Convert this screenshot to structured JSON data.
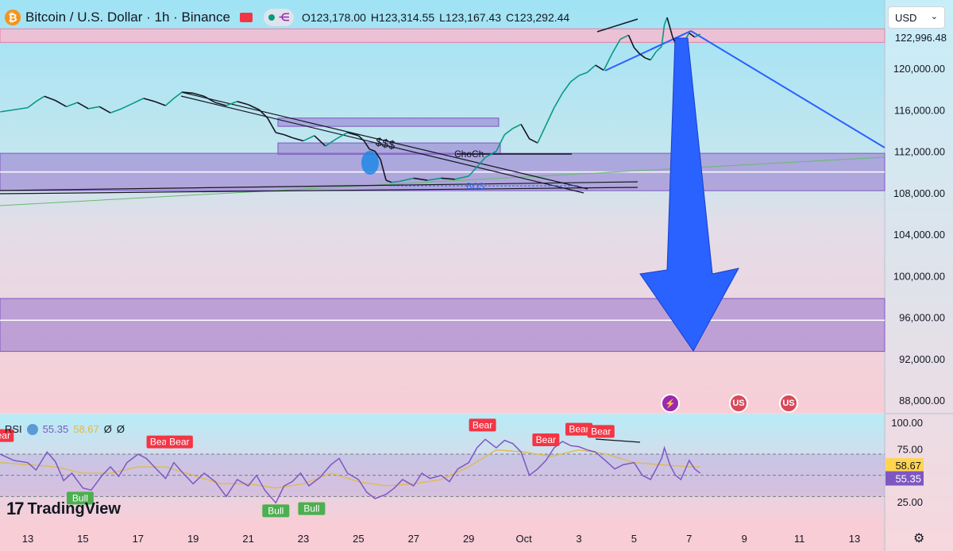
{
  "header": {
    "coin_glyph": "₿",
    "symbol": "Bitcoin / U.S. Dollar · 1h · Binance",
    "open_label": "O",
    "open": "123,178.00",
    "high_label": "H",
    "high": "123,314.55",
    "low_label": "L",
    "low": "123,167.43",
    "close_label": "C",
    "close": "123,292.44",
    "network_icon": "network-icon"
  },
  "currency": {
    "label": "USD",
    "chevron": "⌄"
  },
  "rsi_legend": {
    "name": "RSI",
    "rsi": "55.35",
    "ma": "58.67",
    "ext1": "Ø",
    "ext2": "Ø"
  },
  "branding": {
    "logo_mark": "17",
    "logo_text": "TradingView"
  },
  "settings_icon": "⚙",
  "events": {
    "spark": "⚡",
    "us1": "US",
    "us2": "US"
  },
  "colors": {
    "zone_fill": "#9575cd",
    "zone_pink": "#f8bbd0",
    "arrow": "#2962ff",
    "trendline": "#2962ff",
    "rsi": "#7e57c2",
    "rsi_ma": "#e0b94a",
    "bear": "#f23645",
    "bull": "#4caf50",
    "current_price_bg": "#131722",
    "rsi_badge": "#7e57c2",
    "ma_badge": "#ffd54f"
  },
  "chart_data": [
    {
      "type": "line",
      "title": "Bitcoin / U.S. Dollar · 1h · Binance",
      "ylim": [
        86000,
        125600
      ],
      "y_ticks": [
        "120,000.00",
        "116,000.00",
        "112,000.00",
        "108,000.00",
        "104,000.00",
        "100,000.00",
        "96,000.00",
        "92,000.00",
        "88,000.00"
      ],
      "y_tick_values": [
        120000,
        116000,
        112000,
        108000,
        104000,
        100000,
        96000,
        92000,
        88000
      ],
      "current_price_label": "122,996.48",
      "current_price": 122996.48,
      "x_ticks": [
        "13",
        "15",
        "17",
        "19",
        "21",
        "23",
        "25",
        "27",
        "29",
        "Oct",
        "3",
        "5",
        "7",
        "9",
        "11",
        "13"
      ],
      "x_tick_days": [
        0,
        2,
        4,
        6,
        8,
        10,
        12,
        14,
        16,
        18,
        20,
        22,
        24,
        26,
        28,
        30
      ],
      "xlim": [
        -1,
        31.5
      ],
      "series": [
        {
          "points": [
            [
              -1,
              115800
            ],
            [
              -0.5,
              116000
            ],
            [
              0,
              116200
            ],
            [
              0.3,
              116800
            ],
            [
              0.6,
              117300
            ],
            [
              1,
              116900
            ],
            [
              1.4,
              116300
            ],
            [
              1.8,
              116700
            ],
            [
              2.2,
              116100
            ],
            [
              2.6,
              116300
            ],
            [
              3,
              115700
            ],
            [
              3.4,
              116100
            ],
            [
              3.8,
              116600
            ],
            [
              4.2,
              117100
            ],
            [
              4.6,
              116800
            ],
            [
              5,
              116400
            ],
            [
              5.3,
              117100
            ],
            [
              5.6,
              117700
            ],
            [
              6,
              117600
            ],
            [
              6.4,
              117300
            ],
            [
              6.8,
              116700
            ],
            [
              7.2,
              116400
            ],
            [
              7.6,
              116800
            ],
            [
              8,
              116500
            ],
            [
              8.4,
              116000
            ],
            [
              8.7,
              115200
            ],
            [
              9,
              113800
            ],
            [
              9.3,
              113600
            ],
            [
              9.6,
              113300
            ],
            [
              10,
              113000
            ],
            [
              10.4,
              113500
            ],
            [
              10.8,
              112500
            ],
            [
              11.2,
              113200
            ],
            [
              11.6,
              113800
            ],
            [
              12,
              113500
            ],
            [
              12.2,
              113000
            ],
            [
              12.4,
              112200
            ],
            [
              12.6,
              112000
            ],
            [
              12.8,
              111200
            ],
            [
              13,
              109200
            ],
            [
              13.2,
              109000
            ],
            [
              13.5,
              109100
            ],
            [
              14,
              109400
            ],
            [
              14.5,
              109200
            ],
            [
              15,
              109400
            ],
            [
              15.5,
              109300
            ],
            [
              16,
              109600
            ],
            [
              16.3,
              110500
            ],
            [
              16.6,
              111400
            ],
            [
              17,
              112000
            ],
            [
              17.3,
              113600
            ],
            [
              17.6,
              114200
            ],
            [
              17.9,
              114600
            ],
            [
              18.2,
              113200
            ],
            [
              18.5,
              112800
            ],
            [
              18.8,
              114500
            ],
            [
              19.1,
              116200
            ],
            [
              19.4,
              117600
            ],
            [
              19.7,
              118700
            ],
            [
              20,
              119300
            ],
            [
              20.3,
              119600
            ],
            [
              20.6,
              120300
            ],
            [
              20.9,
              119800
            ],
            [
              21.2,
              121400
            ],
            [
              21.5,
              122800
            ],
            [
              21.8,
              123200
            ],
            [
              22,
              122000
            ],
            [
              22.2,
              121400
            ],
            [
              22.4,
              121000
            ],
            [
              22.6,
              120800
            ],
            [
              22.8,
              121600
            ],
            [
              23,
              122100
            ],
            [
              23.1,
              124200
            ],
            [
              23.2,
              124900
            ],
            [
              23.4,
              123000
            ],
            [
              23.6,
              121800
            ],
            [
              23.8,
              122500
            ],
            [
              24,
              123400
            ],
            [
              24.2,
              123000
            ],
            [
              24.4,
              123300
            ]
          ]
        }
      ],
      "annotations": [
        "$$$",
        "ChoCh",
        "BOS"
      ],
      "zones": [
        {
          "from": 122500,
          "to": 123800
        },
        {
          "from": 111700,
          "to": 112800
        },
        {
          "from": 114400,
          "to": 115200
        },
        {
          "from": 108200,
          "to": 111800
        },
        {
          "from": 92700,
          "to": 97800
        }
      ]
    },
    {
      "type": "line",
      "title": "RSI",
      "ylim": [
        16,
        104
      ],
      "y_ticks": [
        "100.00",
        "75.00",
        "25.00"
      ],
      "y_tick_values": [
        100,
        75,
        25
      ],
      "rsi_badge": "55.35",
      "ma_badge": "58.67",
      "series": [
        {
          "name": "RSI",
          "points": [
            [
              -1,
              70
            ],
            [
              -0.5,
              64
            ],
            [
              0,
              62
            ],
            [
              0.3,
              55
            ],
            [
              0.7,
              72
            ],
            [
              1,
              63
            ],
            [
              1.3,
              45
            ],
            [
              1.6,
              52
            ],
            [
              2,
              38
            ],
            [
              2.3,
              36
            ],
            [
              2.7,
              50
            ],
            [
              3,
              58
            ],
            [
              3.3,
              49
            ],
            [
              3.6,
              62
            ],
            [
              4,
              70
            ],
            [
              4.3,
              66
            ],
            [
              4.7,
              55
            ],
            [
              5,
              47
            ],
            [
              5.3,
              62
            ],
            [
              5.6,
              53
            ],
            [
              6,
              42
            ],
            [
              6.4,
              52
            ],
            [
              6.8,
              44
            ],
            [
              7.2,
              30
            ],
            [
              7.6,
              46
            ],
            [
              8,
              40
            ],
            [
              8.3,
              50
            ],
            [
              8.6,
              36
            ],
            [
              9,
              24
            ],
            [
              9.3,
              40
            ],
            [
              9.6,
              44
            ],
            [
              9.9,
              52
            ],
            [
              10.2,
              40
            ],
            [
              10.6,
              48
            ],
            [
              11,
              60
            ],
            [
              11.3,
              66
            ],
            [
              11.6,
              52
            ],
            [
              12,
              46
            ],
            [
              12.3,
              34
            ],
            [
              12.6,
              28
            ],
            [
              13,
              32
            ],
            [
              13.3,
              38
            ],
            [
              13.6,
              46
            ],
            [
              14,
              40
            ],
            [
              14.3,
              52
            ],
            [
              14.6,
              47
            ],
            [
              15,
              50
            ],
            [
              15.3,
              44
            ],
            [
              15.6,
              56
            ],
            [
              16,
              62
            ],
            [
              16.3,
              76
            ],
            [
              16.6,
              84
            ],
            [
              17,
              76
            ],
            [
              17.3,
              83
            ],
            [
              17.6,
              80
            ],
            [
              17.9,
              72
            ],
            [
              18.2,
              50
            ],
            [
              18.5,
              56
            ],
            [
              18.8,
              64
            ],
            [
              19.1,
              76
            ],
            [
              19.4,
              82
            ],
            [
              19.7,
              78
            ],
            [
              20,
              77
            ],
            [
              20.3,
              74
            ],
            [
              20.6,
              72
            ],
            [
              21,
              63
            ],
            [
              21.3,
              56
            ],
            [
              21.6,
              60
            ],
            [
              22,
              62
            ],
            [
              22.3,
              50
            ],
            [
              22.6,
              46
            ],
            [
              22.8,
              56
            ],
            [
              23,
              66
            ],
            [
              23.1,
              76
            ],
            [
              23.3,
              60
            ],
            [
              23.5,
              50
            ],
            [
              23.7,
              46
            ],
            [
              24,
              64
            ],
            [
              24.2,
              56
            ],
            [
              24.4,
              52
            ]
          ]
        },
        {
          "name": "MA",
          "points": [
            [
              -1,
              62
            ],
            [
              0,
              60
            ],
            [
              1,
              58
            ],
            [
              2,
              52
            ],
            [
              3,
              52
            ],
            [
              4,
              58
            ],
            [
              5,
              58
            ],
            [
              6,
              50
            ],
            [
              7,
              42
            ],
            [
              8,
              42
            ],
            [
              9,
              38
            ],
            [
              10,
              42
            ],
            [
              11,
              52
            ],
            [
              12,
              44
            ],
            [
              13,
              40
            ],
            [
              14,
              42
            ],
            [
              15,
              46
            ],
            [
              16,
              58
            ],
            [
              17,
              74
            ],
            [
              18,
              72
            ],
            [
              19,
              68
            ],
            [
              20,
              74
            ],
            [
              21,
              70
            ],
            [
              22,
              62
            ],
            [
              23,
              60
            ],
            [
              24,
              58
            ],
            [
              24.4,
              58
            ]
          ]
        }
      ],
      "signals": [
        {
          "label": "Bear",
          "day": -1,
          "value": 80,
          "kind": "bear"
        },
        {
          "label": "Bear",
          "day": 4.8,
          "value": 74,
          "kind": "bear"
        },
        {
          "label": "Bear",
          "day": 5.5,
          "value": 74,
          "kind": "bear"
        },
        {
          "label": "Bull",
          "day": 1.9,
          "value": 36,
          "kind": "bull"
        },
        {
          "label": "Bull",
          "day": 9.0,
          "value": 24,
          "kind": "bull"
        },
        {
          "label": "Bull",
          "day": 10.3,
          "value": 26,
          "kind": "bull"
        },
        {
          "label": "Bear",
          "day": 16.5,
          "value": 90,
          "kind": "bear"
        },
        {
          "label": "Bear",
          "day": 18.8,
          "value": 76,
          "kind": "bear"
        },
        {
          "label": "Bear",
          "day": 20.0,
          "value": 86,
          "kind": "bear"
        },
        {
          "label": "Bear",
          "day": 20.8,
          "value": 84,
          "kind": "bear"
        }
      ]
    }
  ]
}
